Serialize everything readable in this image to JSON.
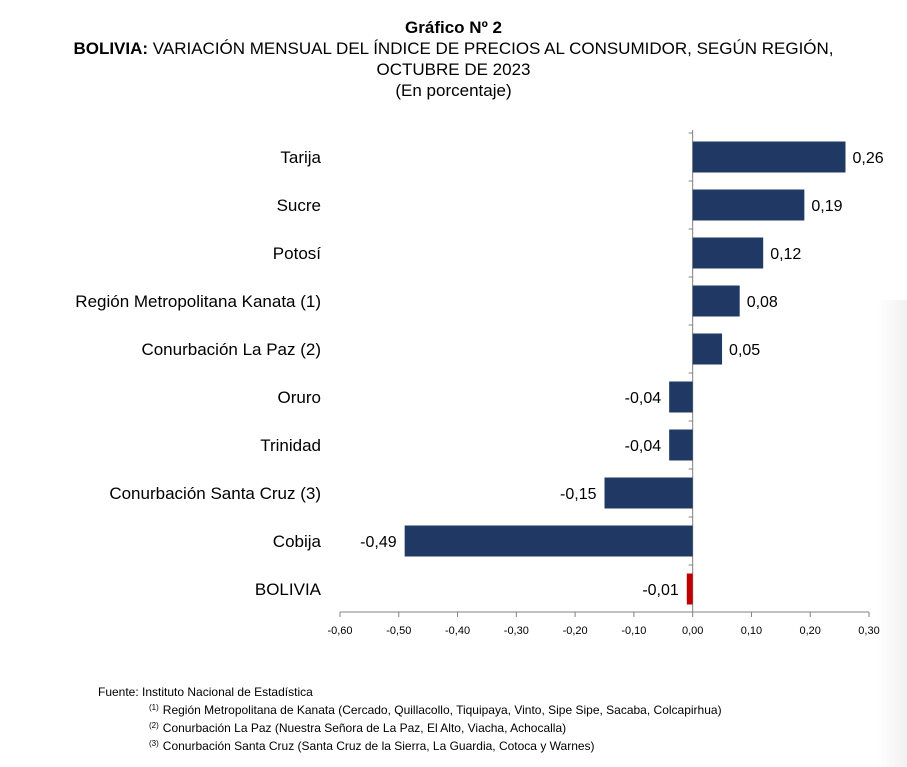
{
  "title": {
    "line1": "Gráfico Nº 2",
    "bold_part": "BOLIVIA:",
    "rest": " VARIACIÓN MENSUAL DEL ÍNDICE DE PRECIOS AL CONSUMIDOR, SEGÚN REGIÓN, OCTUBRE DE 2023",
    "unit": "(En porcentaje)"
  },
  "chart_data": {
    "type": "bar",
    "orientation": "horizontal",
    "categories": [
      "Tarija",
      "Sucre",
      "Potosí",
      "Región Metropolitana Kanata (1)",
      "Conurbación La Paz (2)",
      "Oruro",
      "Trinidad",
      "Conurbación Santa Cruz (3)",
      "Cobija",
      "BOLIVIA"
    ],
    "values": [
      0.26,
      0.19,
      0.12,
      0.08,
      0.05,
      -0.04,
      -0.04,
      -0.15,
      -0.49,
      -0.01
    ],
    "value_labels": [
      "0,26",
      "0,19",
      "0,12",
      "0,08",
      "0,05",
      "-0,04",
      "-0,04",
      "-0,15",
      "-0,49",
      "-0,01"
    ],
    "colors": [
      "#1f3864",
      "#1f3864",
      "#1f3864",
      "#1f3864",
      "#1f3864",
      "#1f3864",
      "#1f3864",
      "#1f3864",
      "#1f3864",
      "#c00000"
    ],
    "xlim": [
      -0.6,
      0.3
    ],
    "xticks": [
      -0.6,
      -0.5,
      -0.4,
      -0.3,
      -0.2,
      -0.1,
      0.0,
      0.1,
      0.2,
      0.3
    ],
    "xtick_labels": [
      "-0,60",
      "-0,50",
      "-0,40",
      "-0,30",
      "-0,20",
      "-0,10",
      "0,00",
      "0,10",
      "0,20",
      "0,30"
    ],
    "grid": false,
    "legend": "none"
  },
  "notes": {
    "source": "Fuente: Instituto Nacional de Estadística",
    "footnotes": [
      {
        "mark": "(1)",
        "text": "Región Metropolitana de Kanata (Cercado, Quillacollo, Tiquipaya, Vinto, Sipe Sipe, Sacaba, Colcapirhua)"
      },
      {
        "mark": "(2)",
        "text": "Conurbación La Paz (Nuestra Señora de La Paz, El Alto, Viacha, Achocalla)"
      },
      {
        "mark": "(3)",
        "text": "Conurbación Santa Cruz (Santa Cruz de la Sierra, La Guardia, Cotoca y Warnes)"
      }
    ]
  }
}
